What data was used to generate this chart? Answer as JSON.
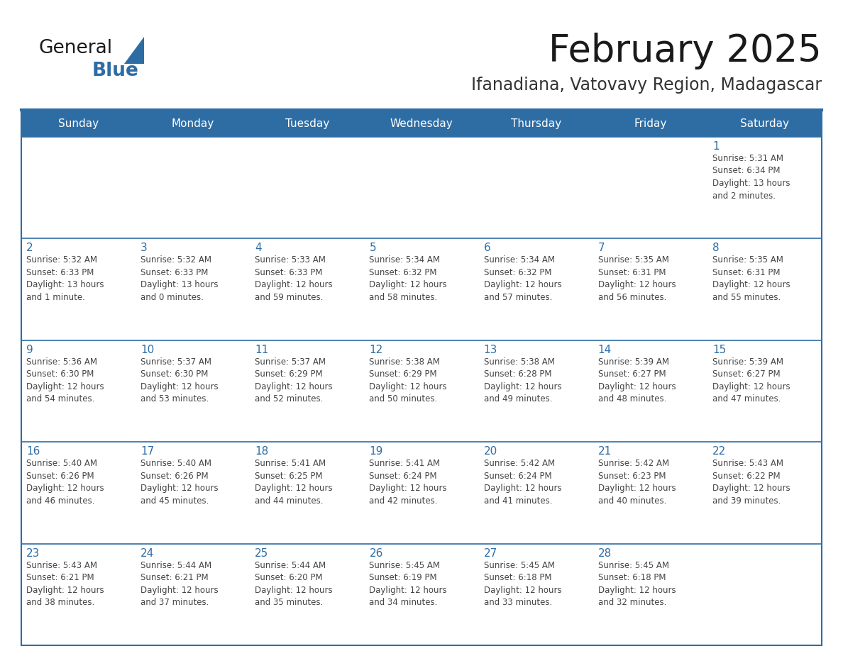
{
  "title": "February 2025",
  "subtitle": "Ifanadiana, Vatovavy Region, Madagascar",
  "days_of_week": [
    "Sunday",
    "Monday",
    "Tuesday",
    "Wednesday",
    "Thursday",
    "Friday",
    "Saturday"
  ],
  "header_bg": "#2E6DA4",
  "header_text": "#FFFFFF",
  "cell_bg": "#FFFFFF",
  "row_border_color": "#2E6DA4",
  "outer_border_color": "#2E6DA4",
  "day_number_color": "#2E6DA4",
  "cell_text_color": "#444444",
  "title_color": "#1a1a1a",
  "subtitle_color": "#333333",
  "logo_general_color": "#1a1a1a",
  "logo_blue_color": "#2E6DA4",
  "weeks": [
    [
      {
        "day": null,
        "info": ""
      },
      {
        "day": null,
        "info": ""
      },
      {
        "day": null,
        "info": ""
      },
      {
        "day": null,
        "info": ""
      },
      {
        "day": null,
        "info": ""
      },
      {
        "day": null,
        "info": ""
      },
      {
        "day": 1,
        "info": "Sunrise: 5:31 AM\nSunset: 6:34 PM\nDaylight: 13 hours\nand 2 minutes."
      }
    ],
    [
      {
        "day": 2,
        "info": "Sunrise: 5:32 AM\nSunset: 6:33 PM\nDaylight: 13 hours\nand 1 minute."
      },
      {
        "day": 3,
        "info": "Sunrise: 5:32 AM\nSunset: 6:33 PM\nDaylight: 13 hours\nand 0 minutes."
      },
      {
        "day": 4,
        "info": "Sunrise: 5:33 AM\nSunset: 6:33 PM\nDaylight: 12 hours\nand 59 minutes."
      },
      {
        "day": 5,
        "info": "Sunrise: 5:34 AM\nSunset: 6:32 PM\nDaylight: 12 hours\nand 58 minutes."
      },
      {
        "day": 6,
        "info": "Sunrise: 5:34 AM\nSunset: 6:32 PM\nDaylight: 12 hours\nand 57 minutes."
      },
      {
        "day": 7,
        "info": "Sunrise: 5:35 AM\nSunset: 6:31 PM\nDaylight: 12 hours\nand 56 minutes."
      },
      {
        "day": 8,
        "info": "Sunrise: 5:35 AM\nSunset: 6:31 PM\nDaylight: 12 hours\nand 55 minutes."
      }
    ],
    [
      {
        "day": 9,
        "info": "Sunrise: 5:36 AM\nSunset: 6:30 PM\nDaylight: 12 hours\nand 54 minutes."
      },
      {
        "day": 10,
        "info": "Sunrise: 5:37 AM\nSunset: 6:30 PM\nDaylight: 12 hours\nand 53 minutes."
      },
      {
        "day": 11,
        "info": "Sunrise: 5:37 AM\nSunset: 6:29 PM\nDaylight: 12 hours\nand 52 minutes."
      },
      {
        "day": 12,
        "info": "Sunrise: 5:38 AM\nSunset: 6:29 PM\nDaylight: 12 hours\nand 50 minutes."
      },
      {
        "day": 13,
        "info": "Sunrise: 5:38 AM\nSunset: 6:28 PM\nDaylight: 12 hours\nand 49 minutes."
      },
      {
        "day": 14,
        "info": "Sunrise: 5:39 AM\nSunset: 6:27 PM\nDaylight: 12 hours\nand 48 minutes."
      },
      {
        "day": 15,
        "info": "Sunrise: 5:39 AM\nSunset: 6:27 PM\nDaylight: 12 hours\nand 47 minutes."
      }
    ],
    [
      {
        "day": 16,
        "info": "Sunrise: 5:40 AM\nSunset: 6:26 PM\nDaylight: 12 hours\nand 46 minutes."
      },
      {
        "day": 17,
        "info": "Sunrise: 5:40 AM\nSunset: 6:26 PM\nDaylight: 12 hours\nand 45 minutes."
      },
      {
        "day": 18,
        "info": "Sunrise: 5:41 AM\nSunset: 6:25 PM\nDaylight: 12 hours\nand 44 minutes."
      },
      {
        "day": 19,
        "info": "Sunrise: 5:41 AM\nSunset: 6:24 PM\nDaylight: 12 hours\nand 42 minutes."
      },
      {
        "day": 20,
        "info": "Sunrise: 5:42 AM\nSunset: 6:24 PM\nDaylight: 12 hours\nand 41 minutes."
      },
      {
        "day": 21,
        "info": "Sunrise: 5:42 AM\nSunset: 6:23 PM\nDaylight: 12 hours\nand 40 minutes."
      },
      {
        "day": 22,
        "info": "Sunrise: 5:43 AM\nSunset: 6:22 PM\nDaylight: 12 hours\nand 39 minutes."
      }
    ],
    [
      {
        "day": 23,
        "info": "Sunrise: 5:43 AM\nSunset: 6:21 PM\nDaylight: 12 hours\nand 38 minutes."
      },
      {
        "day": 24,
        "info": "Sunrise: 5:44 AM\nSunset: 6:21 PM\nDaylight: 12 hours\nand 37 minutes."
      },
      {
        "day": 25,
        "info": "Sunrise: 5:44 AM\nSunset: 6:20 PM\nDaylight: 12 hours\nand 35 minutes."
      },
      {
        "day": 26,
        "info": "Sunrise: 5:45 AM\nSunset: 6:19 PM\nDaylight: 12 hours\nand 34 minutes."
      },
      {
        "day": 27,
        "info": "Sunrise: 5:45 AM\nSunset: 6:18 PM\nDaylight: 12 hours\nand 33 minutes."
      },
      {
        "day": 28,
        "info": "Sunrise: 5:45 AM\nSunset: 6:18 PM\nDaylight: 12 hours\nand 32 minutes."
      },
      {
        "day": null,
        "info": ""
      }
    ]
  ]
}
